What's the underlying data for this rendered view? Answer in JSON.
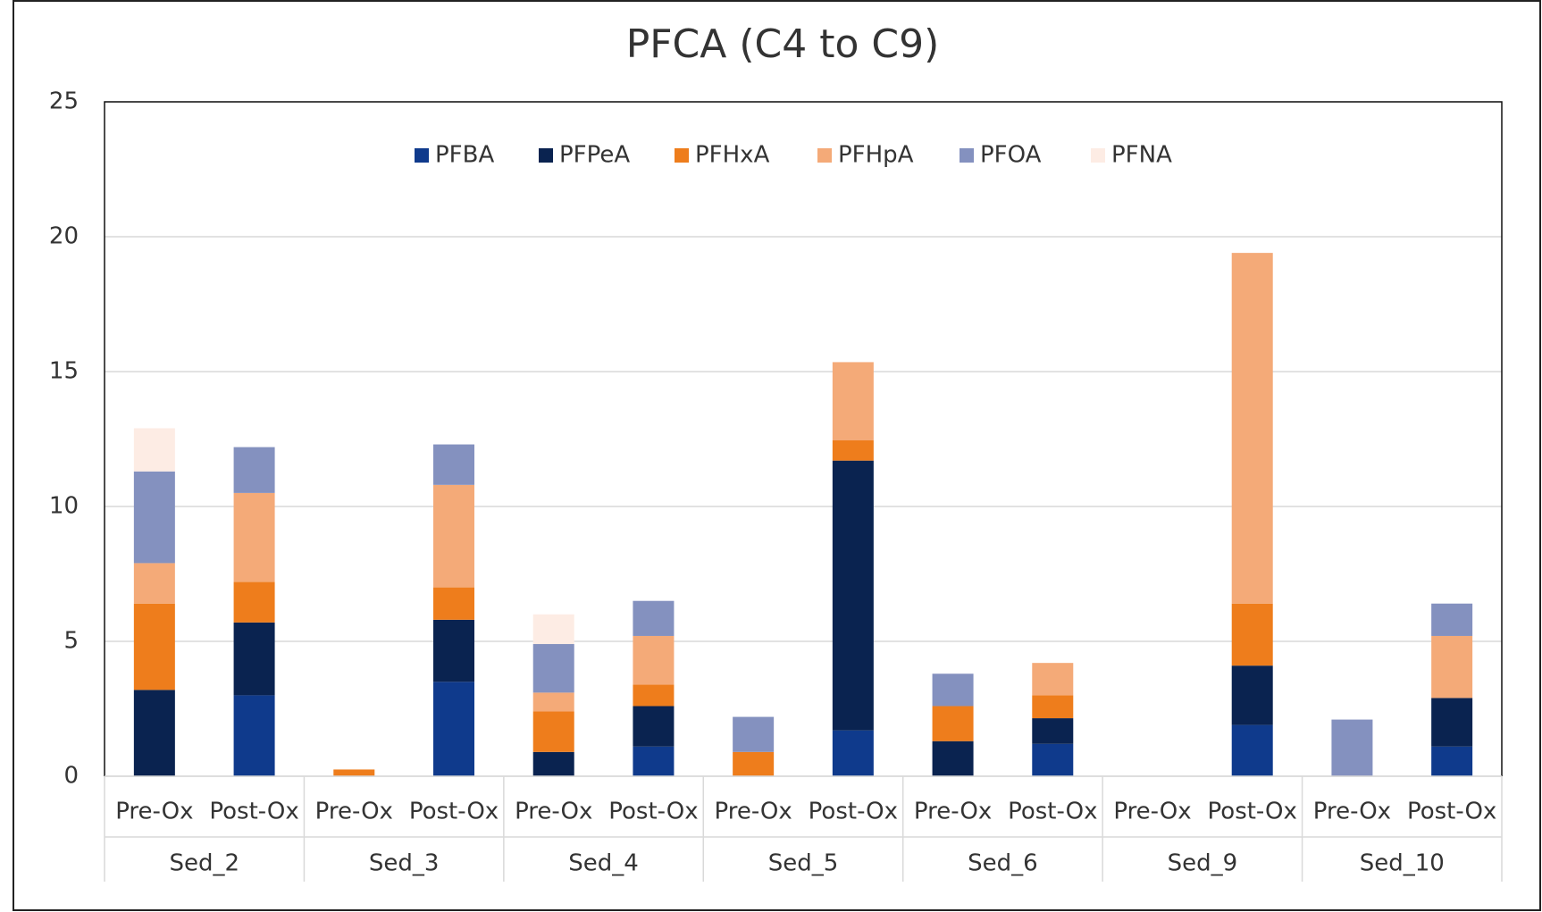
{
  "chart_data": {
    "type": "stacked_bar",
    "title": "PFCA (C4 to C9)",
    "categories": [
      "Pre-Ox",
      "Post-Ox",
      "Pre-Ox",
      "Post-Ox",
      "Pre-Ox",
      "Post-Ox",
      "Pre-Ox",
      "Post-Ox",
      "Pre-Ox",
      "Post-Ox",
      "Pre-Ox",
      "Post-Ox",
      "Pre-Ox",
      "Post-Ox"
    ],
    "groups": [
      "Sed_2",
      "Sed_3",
      "Sed_4",
      "Sed_5",
      "Sed_6",
      "Sed_9",
      "Sed_10"
    ],
    "series": [
      {
        "name": "PFBA",
        "color": "#0f3a8c",
        "values": [
          0,
          3.0,
          0,
          3.5,
          0,
          1.1,
          0,
          1.7,
          0,
          1.2,
          0,
          1.9,
          0,
          1.1
        ]
      },
      {
        "name": "PFPeA",
        "color": "#0a2350",
        "values": [
          3.2,
          2.7,
          0,
          2.3,
          0.9,
          1.5,
          0,
          10.0,
          1.3,
          0.95,
          0,
          2.2,
          0,
          1.8
        ]
      },
      {
        "name": "PFHxA",
        "color": "#ee7d1c",
        "values": [
          3.2,
          1.5,
          0.25,
          1.2,
          1.5,
          0.8,
          0.9,
          0.75,
          1.3,
          0.85,
          0,
          2.3,
          0,
          0
        ]
      },
      {
        "name": "PFHpA",
        "color": "#f4aa78",
        "values": [
          1.5,
          3.3,
          0,
          3.8,
          0.7,
          1.8,
          0,
          2.9,
          0,
          1.2,
          0,
          13.0,
          0,
          2.3
        ]
      },
      {
        "name": "PFOA",
        "color": "#8491bf",
        "values": [
          3.4,
          1.7,
          0,
          1.5,
          1.8,
          1.3,
          1.3,
          0,
          1.2,
          0,
          0,
          0,
          2.1,
          1.2
        ]
      },
      {
        "name": "PFNA",
        "color": "#fdece4",
        "values": [
          1.6,
          0,
          0,
          0,
          1.1,
          0,
          0,
          0,
          0,
          0,
          0,
          0,
          0,
          0
        ]
      }
    ],
    "ylim": [
      0,
      25
    ],
    "yticks": [
      0,
      5,
      10,
      15,
      20,
      25
    ],
    "grid": true,
    "legend": "top"
  }
}
